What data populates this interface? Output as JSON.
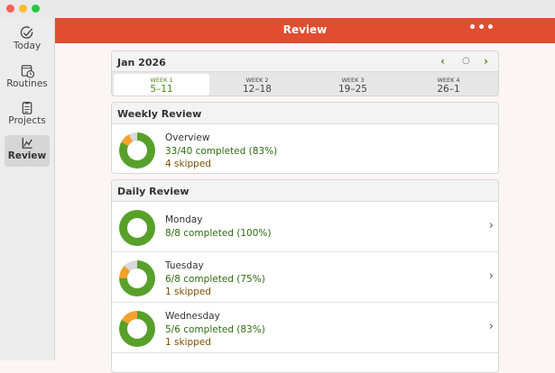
{
  "window": {
    "controls": [
      "close",
      "minimize",
      "zoom"
    ]
  },
  "sidebar": {
    "items": [
      {
        "label": "Today",
        "icon": "checkmark-circle-icon",
        "selected": false
      },
      {
        "label": "Routines",
        "icon": "calendar-clock-icon",
        "selected": false
      },
      {
        "label": "Projects",
        "icon": "clipboard-icon",
        "selected": false
      },
      {
        "label": "Review",
        "icon": "chart-line-icon",
        "selected": true
      }
    ]
  },
  "header": {
    "title": "Review",
    "more": "•••"
  },
  "calendar": {
    "month": "Jan 2026",
    "prev": "‹",
    "today": "○",
    "next": "›",
    "weeks": [
      {
        "label": "WEEK 1",
        "range": "5–11",
        "selected": true
      },
      {
        "label": "WEEK 2",
        "range": "12–18"
      },
      {
        "label": "WEEK 3",
        "range": "19–25"
      },
      {
        "label": "WEEK 4",
        "range": "26–1"
      }
    ]
  },
  "weekly": {
    "title": "Weekly Review",
    "name": "Overview",
    "completed": "33/40 completed (83%)",
    "skipped": "4 skipped",
    "chart": {
      "done": 33,
      "skipped": 4,
      "total": 40
    }
  },
  "daily": {
    "title": "Daily Review",
    "days": [
      {
        "name": "Monday",
        "completed": "8/8 completed (100%)",
        "skipped": "",
        "chart": {
          "done": 8,
          "skipped": 0,
          "total": 8
        }
      },
      {
        "name": "Tuesday",
        "completed": "6/8 completed (75%)",
        "skipped": "1 skipped",
        "chart": {
          "done": 6,
          "skipped": 1,
          "total": 8
        }
      },
      {
        "name": "Wednesday",
        "completed": "5/6 completed (83%)",
        "skipped": "1 skipped",
        "chart": {
          "done": 5,
          "skipped": 1,
          "total": 6
        }
      }
    ]
  },
  "colors": {
    "accent": "#e24c2f",
    "done": "#58a02a",
    "skipped": "#f2a22c",
    "remaining": "#d9d9d9"
  }
}
